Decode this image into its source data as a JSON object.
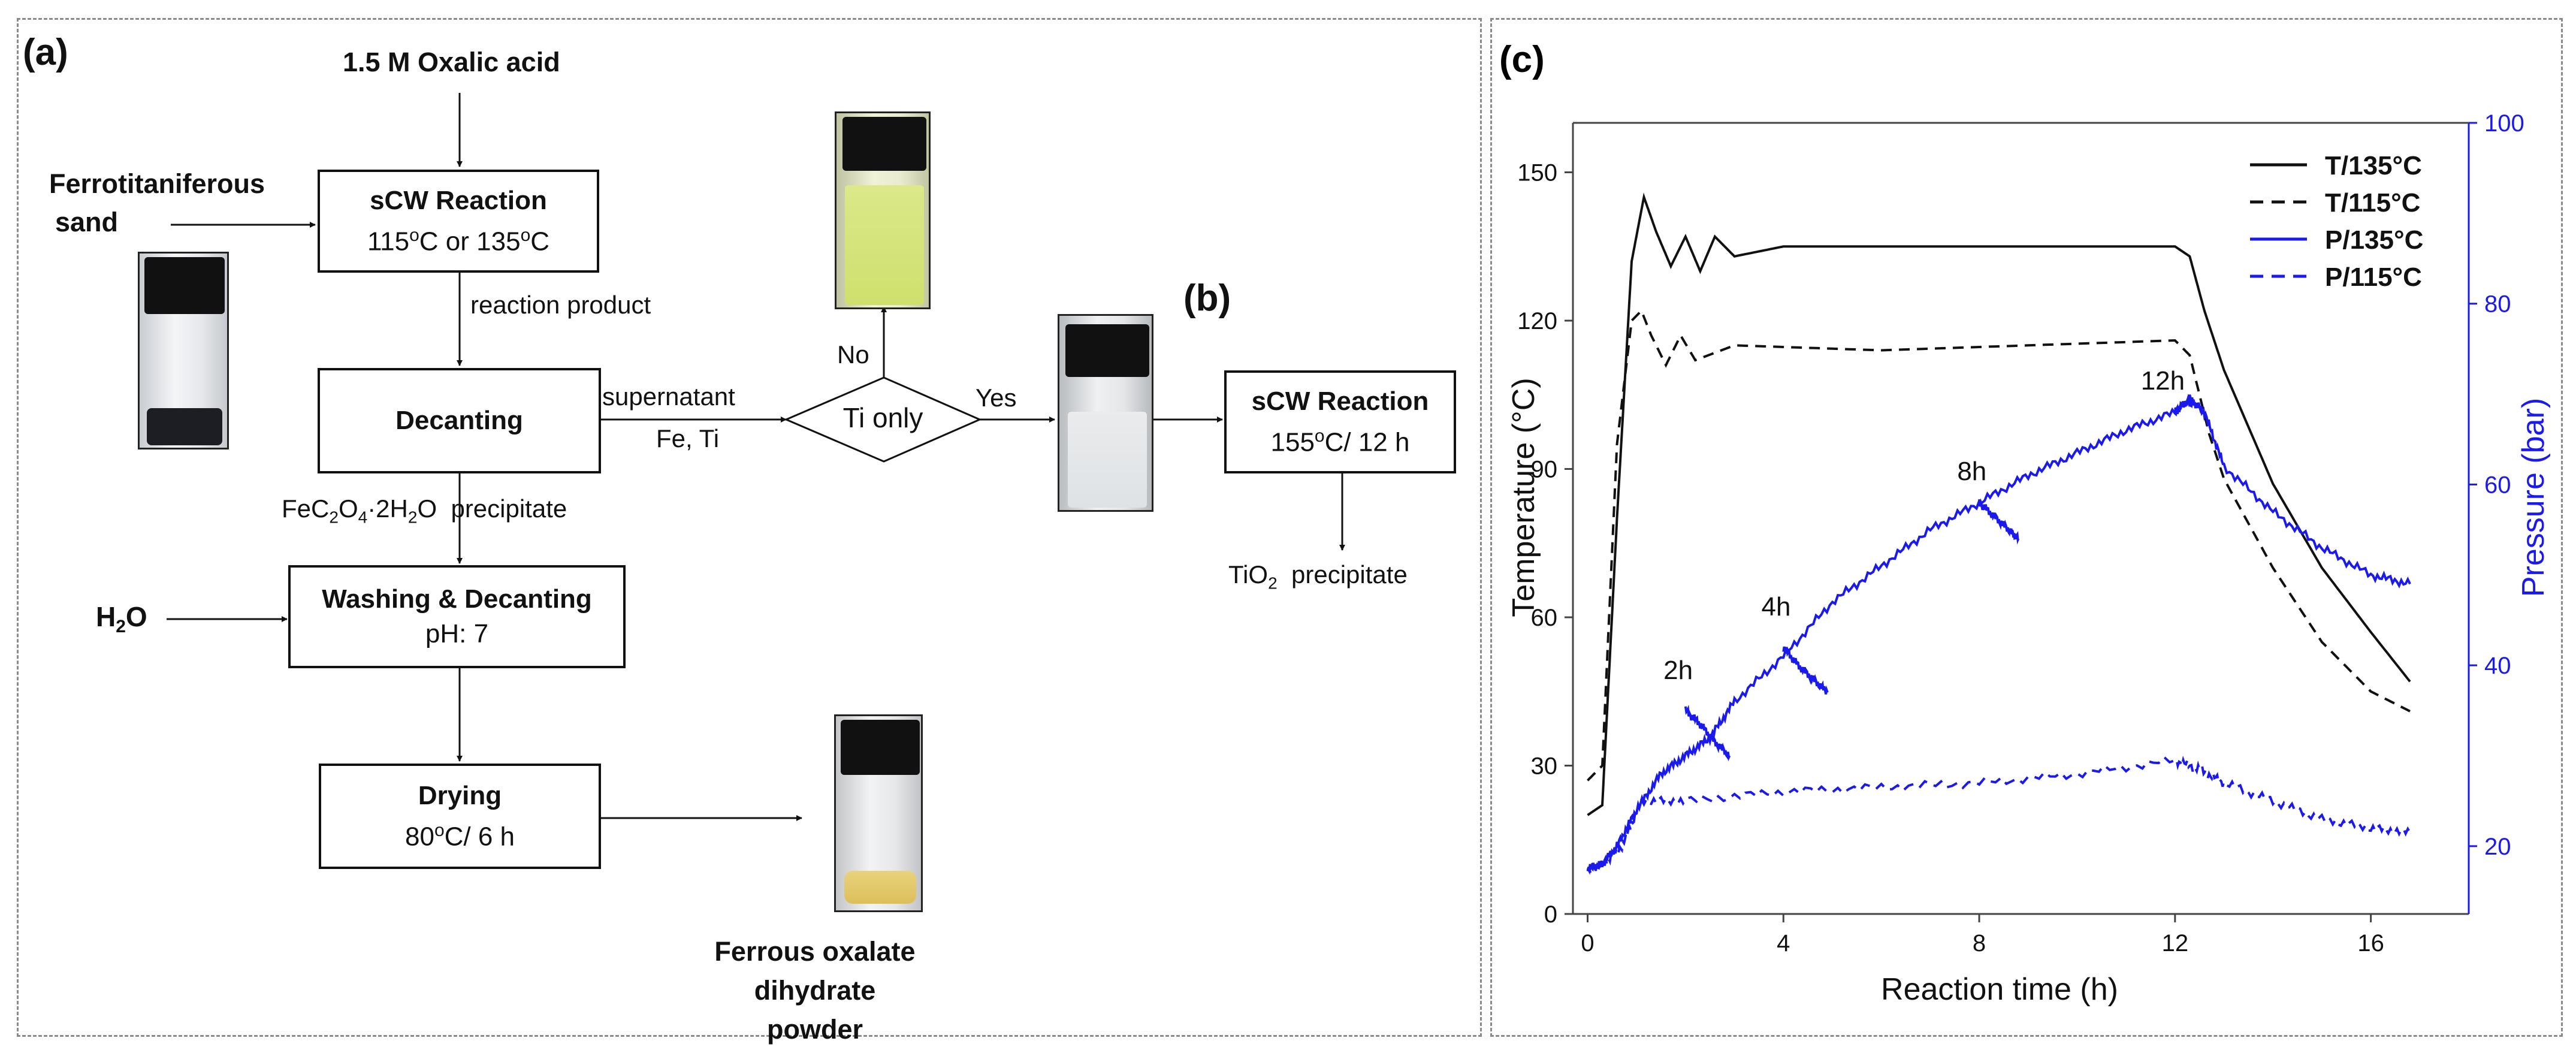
{
  "flowchart": {
    "panel_a_label": "(a)",
    "panel_b_label": "(b)",
    "oxalic_acid": "1.5 M Oxalic acid",
    "feed_line1": "Ferrotitaniferous",
    "feed_line2": "sand",
    "reaction1_title": "sCW Reaction",
    "reaction1_cond_pre": "115",
    "reaction1_cond_mid": "C or 135",
    "reaction1_cond_post": "C",
    "reaction_product": "reaction product",
    "decanting": "Decanting",
    "supernatant": "supernatant",
    "fe_ti": "Fe, Ti",
    "decision": "Ti only",
    "no": "No",
    "yes": "Yes",
    "reaction2_title": "sCW Reaction",
    "reaction2_cond_pre": "155",
    "reaction2_cond_post": "C/ 12 h",
    "tio2_pre": "TiO",
    "tio2_sub": "2",
    "tio2_post": "  precipitate",
    "fe_oxalate_parts": [
      "FeC",
      "2",
      "O",
      "4",
      "·2H",
      "2",
      "O  precipitate"
    ],
    "water_pre": "H",
    "water_sub": "2",
    "water_post": "O",
    "washing_title": "Washing & Decanting",
    "washing_sub": "pH: 7",
    "drying_title": "Drying",
    "drying_pre": "80",
    "drying_post": "C/ 6 h",
    "degree_sup": "o",
    "product_line1": "Ferrous oxalate dihydrate",
    "product_line2": "powder"
  },
  "chart_data": {
    "type": "line",
    "panel_label": "(c)",
    "xlabel": "Reaction time (h)",
    "ylabel": "Temperature (°C)",
    "y2label": "Pressure (bar)",
    "xlim": [
      -0.3,
      18
    ],
    "ylim": [
      0,
      160
    ],
    "y2lim": [
      12.5,
      100
    ],
    "xticks": [
      0,
      4,
      8,
      12,
      16
    ],
    "yticks": [
      0,
      30,
      60,
      90,
      120,
      150
    ],
    "y2ticks": [
      20,
      40,
      60,
      80,
      100
    ],
    "legend_position": "top-right",
    "colors": {
      "temperature": "#111111",
      "pressure": "#1a1aee",
      "axis2": "#1a1aee"
    },
    "series": [
      {
        "name": "T/135°C",
        "axis": "left",
        "style": "solid",
        "x": [
          0,
          0.3,
          0.6,
          0.9,
          1.15,
          1.4,
          1.7,
          2.0,
          2.3,
          2.6,
          3.0,
          4.0,
          6.0,
          8.0,
          10.0,
          12.0,
          12.3,
          12.6,
          13.0,
          14.0,
          15.0,
          16.0,
          16.8
        ],
        "y": [
          20,
          22,
          80,
          132,
          145,
          138,
          131,
          137,
          130,
          137,
          133,
          135,
          135,
          135,
          135,
          135,
          133,
          122,
          110,
          87,
          70,
          57,
          47
        ]
      },
      {
        "name": "T/115°C",
        "axis": "left",
        "style": "dashed",
        "x": [
          0,
          0.3,
          0.6,
          0.9,
          1.1,
          1.3,
          1.6,
          1.9,
          2.2,
          3.0,
          6.0,
          9.0,
          12.0,
          12.3,
          12.7,
          13.0,
          14.0,
          15.0,
          16.0,
          16.8
        ],
        "y": [
          27,
          30,
          95,
          120,
          122,
          117,
          111,
          117,
          112,
          115,
          114,
          115,
          116,
          113,
          97,
          88,
          70,
          55,
          45,
          41
        ]
      },
      {
        "name": "P/135°C",
        "axis": "right",
        "style": "solid",
        "x": [
          0,
          0.3,
          0.6,
          1.0,
          1.5,
          2.0,
          2.5,
          3.0,
          4.0,
          5.0,
          6.0,
          7.0,
          8.0,
          9.0,
          10.0,
          11.0,
          12.0,
          12.3,
          12.6,
          13.0,
          14.0,
          15.0,
          16.0,
          16.8
        ],
        "y": [
          17.5,
          18,
          20,
          24,
          28,
          30,
          32,
          36,
          41,
          47,
          51,
          55,
          58,
          61,
          63.5,
          66,
          68,
          69.5,
          68,
          62,
          57,
          53,
          50,
          49
        ]
      },
      {
        "name": "P/115°C",
        "axis": "right",
        "style": "dashed",
        "x": [
          0,
          0.3,
          0.7,
          1.1,
          2.0,
          4.0,
          6.0,
          8.0,
          10.0,
          12.0,
          12.5,
          13.0,
          14.0,
          15.0,
          16.0,
          16.8
        ],
        "y": [
          17.5,
          18,
          20,
          25,
          25,
          26,
          26.5,
          27,
          28,
          29.5,
          28.5,
          27,
          25,
          23,
          22,
          21.5
        ]
      },
      {
        "name": "",
        "axis": "right",
        "style": "solid",
        "x": [
          2.0,
          2.3,
          2.6,
          2.9
        ],
        "y": [
          35,
          33.5,
          31.5,
          30
        ]
      },
      {
        "name": "",
        "axis": "right",
        "style": "solid",
        "x": [
          4.0,
          4.3,
          4.6,
          4.9
        ],
        "y": [
          42,
          40,
          38.5,
          37
        ]
      },
      {
        "name": "",
        "axis": "right",
        "style": "solid",
        "x": [
          8.0,
          8.3,
          8.6,
          8.8
        ],
        "y": [
          58,
          56.5,
          55,
          54
        ]
      },
      {
        "name": "",
        "axis": "right",
        "style": "solid",
        "x": [
          12.0,
          12.2,
          12.4
        ],
        "y": [
          68,
          69,
          69
        ]
      }
    ],
    "annotations": [
      {
        "text": "2h",
        "x": 1.85,
        "y": 38.5,
        "axis": "right"
      },
      {
        "text": "4h",
        "x": 3.85,
        "y": 45.5,
        "axis": "right"
      },
      {
        "text": "8h",
        "x": 7.85,
        "y": 60.5,
        "axis": "right"
      },
      {
        "text": "12h",
        "x": 11.75,
        "y": 70.5,
        "axis": "right"
      }
    ]
  }
}
